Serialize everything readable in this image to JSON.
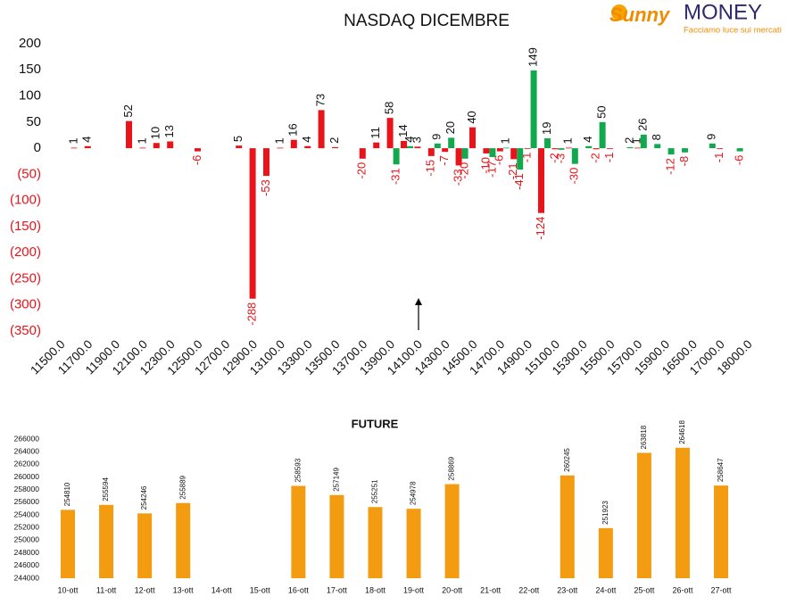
{
  "logo": {
    "brand": "Sunny",
    "name": "MONEY",
    "tagline": "Facciamo luce sui mercati"
  },
  "chart_data": [
    {
      "type": "bar",
      "title": "NASDAQ DICEMBRE",
      "categories": [
        "11500.0",
        null,
        "11700.0",
        null,
        "11900.0",
        null,
        "12100.0",
        null,
        "12300.0",
        null,
        "12500.0",
        null,
        "12700.0",
        null,
        "12900.0",
        null,
        "13100.0",
        null,
        "13300.0",
        null,
        "13500.0",
        null,
        "13700.0",
        null,
        "13900.0",
        null,
        "14100.0",
        null,
        "14300.0",
        null,
        "14500.0",
        null,
        "14700.0",
        null,
        "14900.0",
        null,
        "15100.0",
        null,
        "15300.0",
        null,
        "15500.0",
        null,
        "15700.0",
        null,
        "15900.0",
        null,
        "16500.0",
        null,
        "17000.0",
        null,
        "18000.0"
      ],
      "series": [
        {
          "color": "#e8141a",
          "values": [
            null,
            1,
            4,
            null,
            null,
            52,
            1,
            10,
            13,
            null,
            -6,
            null,
            null,
            5,
            -288,
            -53,
            1,
            16,
            4,
            73,
            2,
            null,
            -20,
            11,
            58,
            14,
            3,
            -15,
            -7,
            -33,
            40,
            -10,
            -6,
            -21,
            -1,
            -124,
            -2,
            1,
            null,
            -2,
            -1,
            null,
            1,
            null,
            null,
            null,
            null,
            null,
            -1,
            null,
            null
          ]
        },
        {
          "color": "#12a84e",
          "values": [
            null,
            null,
            null,
            null,
            null,
            null,
            null,
            null,
            null,
            null,
            null,
            null,
            null,
            null,
            null,
            null,
            null,
            null,
            null,
            null,
            null,
            null,
            null,
            null,
            -31,
            4,
            null,
            9,
            20,
            -20,
            null,
            -17,
            1,
            -41,
            149,
            19,
            -3,
            -30,
            4,
            50,
            null,
            2,
            26,
            8,
            -12,
            -8,
            null,
            9,
            null,
            -6,
            null
          ]
        }
      ],
      "ylim": [
        -350,
        200
      ],
      "yticks": [
        {
          "value": -350,
          "label": "(350)"
        },
        {
          "value": -300,
          "label": "(300)"
        },
        {
          "value": -250,
          "label": "(250)"
        },
        {
          "value": -200,
          "label": "(200)"
        },
        {
          "value": -150,
          "label": "(150)"
        },
        {
          "value": -100,
          "label": "(100)"
        },
        {
          "value": -50,
          "label": "(50)"
        },
        0,
        50,
        100,
        150,
        200
      ]
    },
    {
      "type": "bar",
      "title": "FUTURE",
      "categories": [
        "10-ott",
        "11-ott",
        "12-ott",
        "13-ott",
        "14-ott",
        "15-ott",
        "16-ott",
        "17-ott",
        "18-ott",
        "19-ott",
        "20-ott",
        "21-ott",
        "22-ott",
        "23-ott",
        "24-ott",
        "25-ott",
        "26-ott",
        "27-ott"
      ],
      "values": [
        254810,
        255594,
        254246,
        255889,
        null,
        null,
        258593,
        257149,
        255251,
        254978,
        258869,
        null,
        null,
        260245,
        251923,
        263818,
        264618,
        258647
      ],
      "color": "#f39c12",
      "ylim": [
        244000,
        266000
      ],
      "yticks": [
        244000,
        246000,
        248000,
        250000,
        252000,
        254000,
        256000,
        258000,
        260000,
        262000,
        264000,
        266000
      ]
    }
  ]
}
